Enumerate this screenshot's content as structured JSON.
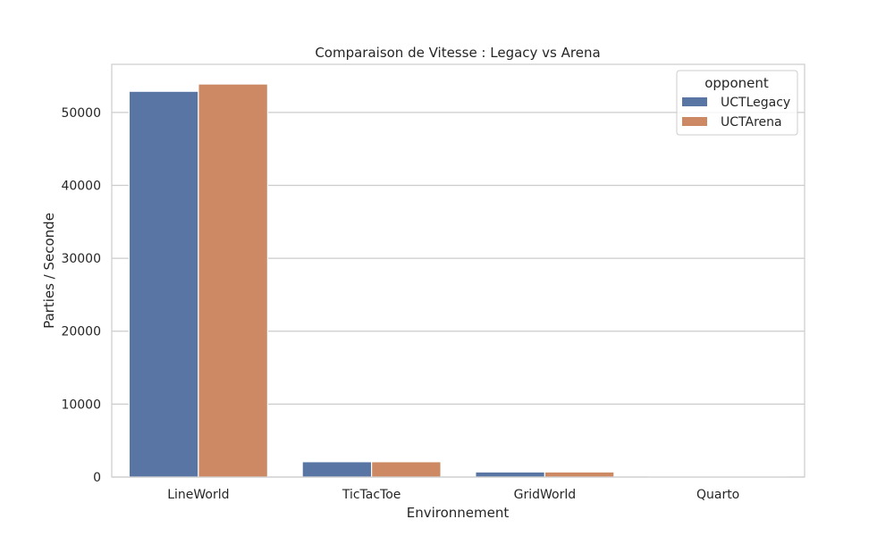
{
  "chart_data": {
    "type": "bar",
    "title": "Comparaison de Vitesse : Legacy vs Arena",
    "xlabel": "Environnement",
    "ylabel": "Parties / Seconde",
    "categories": [
      "LineWorld",
      "TicTacToe",
      "GridWorld",
      "Quarto"
    ],
    "series": [
      {
        "name": "UCTLegacy",
        "color": "#5975a4",
        "values": [
          52900,
          2100,
          700,
          60
        ]
      },
      {
        "name": "UCTArena",
        "color": "#cc8963",
        "values": [
          53900,
          2100,
          700,
          60
        ]
      }
    ],
    "ylim": [
      0,
      56600
    ],
    "yticks": [
      0,
      10000,
      20000,
      30000,
      40000,
      50000
    ],
    "grid": true,
    "legend": {
      "title": "opponent",
      "placement": "top-right"
    }
  }
}
